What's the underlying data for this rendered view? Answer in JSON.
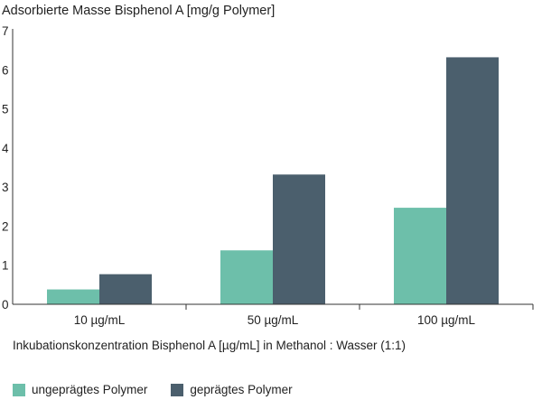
{
  "chart_data": {
    "type": "bar",
    "title": "Adsorbierte Masse Bisphenol A [mg/g Polymer]",
    "ylabel": "Adsorbierte Masse Bisphenol A [mg/g Polymer]",
    "xlabel": "Inkubationskonzentration Bisphenol A [µg/mL] in Methanol : Wasser (1:1)",
    "categories": [
      "10 µg/mL",
      "50 µg/mL",
      "100 µg/mL"
    ],
    "ylim": [
      0,
      7
    ],
    "yticks": [
      "0",
      "1",
      "2",
      "3",
      "4",
      "5",
      "6",
      "7"
    ],
    "grid": false,
    "legend_position": "bottom-left",
    "series": [
      {
        "name": "ungeprägtes Polymer",
        "color": "#6dbfaa",
        "values": [
          0.38,
          1.38,
          2.47
        ]
      },
      {
        "name": "geprägtes Polymer",
        "color": "#4b5f6d",
        "values": [
          0.77,
          3.32,
          6.32
        ]
      }
    ]
  }
}
